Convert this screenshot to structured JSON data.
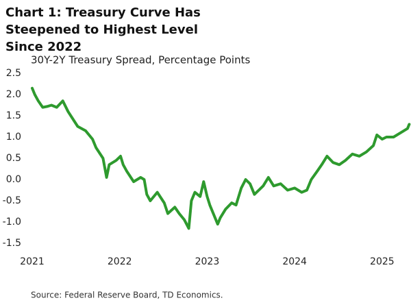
{
  "chart_data": {
    "type": "line",
    "title": "Chart 1: Treasury Curve Has Steepened to Highest Level Since 2022",
    "subtitle": "30Y-2Y Treasury Spread, Percentage Points",
    "source": "Source: Federal Reserve Board, TD Economics.",
    "color": "#2e9a2e",
    "grid": false,
    "x": [
      2021.0,
      2021.03,
      2021.07,
      2021.12,
      2021.17,
      2021.22,
      2021.28,
      2021.35,
      2021.41,
      2021.52,
      2021.61,
      2021.69,
      2021.73,
      2021.81,
      2021.85,
      2021.88,
      2021.96,
      2022.01,
      2022.04,
      2022.08,
      2022.16,
      2022.24,
      2022.28,
      2022.31,
      2022.35,
      2022.43,
      2022.51,
      2022.55,
      2022.63,
      2022.68,
      2022.74,
      2022.79,
      2022.82,
      2022.86,
      2022.92,
      2022.96,
      2023.0,
      2023.03,
      2023.07,
      2023.12,
      2023.15,
      2023.21,
      2023.28,
      2023.33,
      2023.39,
      2023.44,
      2023.49,
      2023.54,
      2023.59,
      2023.64,
      2023.7,
      2023.76,
      2023.84,
      2023.92,
      2024.0,
      2024.08,
      2024.14,
      2024.19,
      2024.26,
      2024.31,
      2024.37,
      2024.44,
      2024.51,
      2024.58,
      2024.66,
      2024.74,
      2024.82,
      2024.9,
      2024.94,
      2025.0,
      2025.05,
      2025.13,
      2025.21,
      2025.29,
      2025.31
    ],
    "values": [
      2.15,
      2.0,
      1.85,
      1.7,
      1.72,
      1.75,
      1.7,
      1.85,
      1.6,
      1.25,
      1.15,
      0.95,
      0.75,
      0.5,
      0.05,
      0.35,
      0.45,
      0.55,
      0.35,
      0.2,
      -0.05,
      0.05,
      0.0,
      -0.35,
      -0.5,
      -0.3,
      -0.55,
      -0.8,
      -0.65,
      -0.8,
      -0.95,
      -1.15,
      -0.5,
      -0.3,
      -0.4,
      -0.05,
      -0.4,
      -0.6,
      -0.8,
      -1.05,
      -0.9,
      -0.7,
      -0.55,
      -0.6,
      -0.2,
      0.0,
      -0.1,
      -0.35,
      -0.25,
      -0.15,
      0.05,
      -0.15,
      -0.1,
      -0.25,
      -0.2,
      -0.3,
      -0.25,
      0.0,
      0.2,
      0.35,
      0.55,
      0.4,
      0.35,
      0.45,
      0.6,
      0.55,
      0.65,
      0.8,
      1.05,
      0.95,
      1.0,
      1.0,
      1.1,
      1.2,
      1.3
    ],
    "xlim": [
      2021,
      2025.33
    ],
    "xticks": [
      2021,
      2022,
      2023,
      2024,
      2025
    ],
    "ylim": [
      -1.5,
      2.5
    ],
    "yticks": [
      2.5,
      {
        "value": 2,
        "label": "2.0"
      },
      1.5,
      {
        "value": 1,
        "label": "1.0"
      },
      0.5,
      {
        "value": 0,
        "label": "0.0"
      },
      -0.5,
      {
        "value": -1,
        "label": "-1.0"
      },
      -1.5
    ]
  }
}
